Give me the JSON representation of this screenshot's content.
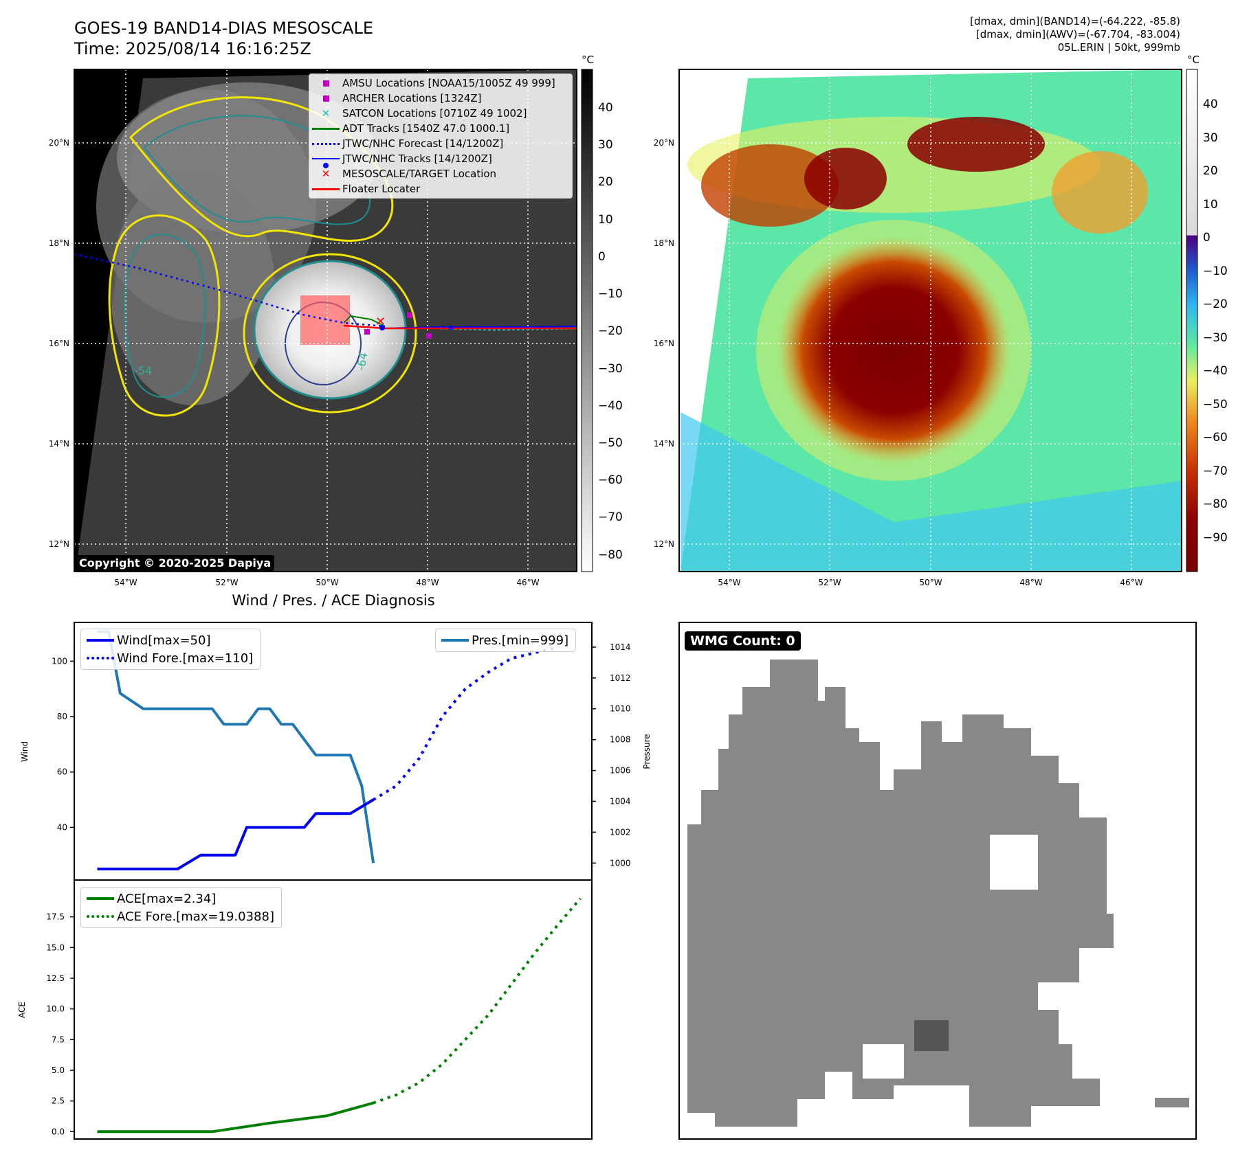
{
  "header": {
    "title_line1": "GOES-19 BAND14-DIAS MESOSCALE",
    "title_line2": "Time: 2025/08/14 16:16:25Z",
    "meta_line1": "[dmax, dmin](BAND14)=(-64.222, -85.8)",
    "meta_line2": "[dmax, dmin](AWV)=(-67.704, -83.004)",
    "meta_line3": "05L.ERIN | 50kt, 999mb"
  },
  "ir_map": {
    "lon_ticks": [
      "54°W",
      "52°W",
      "50°W",
      "48°W",
      "46°W"
    ],
    "lat_ticks": [
      "20°N",
      "18°N",
      "16°N",
      "14°N",
      "12°N"
    ],
    "contour_labels": [
      "-54",
      "-64"
    ],
    "copyright": "Copyright © 2020-2025 Dapiya",
    "legend": [
      {
        "label": "AMSU Locations [NOAA15/1005Z 49 999]",
        "color": "#c000c0",
        "kind": "square"
      },
      {
        "label": "ARCHER Locations [1324Z]",
        "color": "#c000c0",
        "kind": "square"
      },
      {
        "label": "SATCON Locations [0710Z 49 1002]",
        "color": "#20c0c0",
        "kind": "x"
      },
      {
        "label": "ADT Tracks [1540Z 47.0 1000.1]",
        "color": "#008000",
        "kind": "line"
      },
      {
        "label": "JTWC/NHC Forecast [14/1200Z]",
        "color": "#0000ff",
        "kind": "dotted"
      },
      {
        "label": "JTWC/NHC Tracks [14/1200Z]",
        "color": "#0000ff",
        "kind": "line-dot"
      },
      {
        "label": "MESOSCALE/TARGET Location",
        "color": "#ff0000",
        "kind": "x"
      },
      {
        "label": "Floater Locater",
        "color": "#ff0000",
        "kind": "line"
      }
    ],
    "colorbar": {
      "unit": "°C",
      "ticks": [
        "40",
        "30",
        "20",
        "10",
        "0",
        "−10",
        "−20",
        "−30",
        "−40",
        "−50",
        "−60",
        "−70",
        "−80"
      ]
    }
  },
  "awv_map": {
    "lon_ticks": [
      "54°W",
      "52°W",
      "50°W",
      "48°W",
      "46°W"
    ],
    "lat_ticks": [
      "20°N",
      "18°N",
      "16°N",
      "14°N",
      "12°N"
    ],
    "colorbar": {
      "unit": "°C",
      "ticks": [
        "40",
        "30",
        "20",
        "10",
        "0",
        "−10",
        "−20",
        "−30",
        "−40",
        "−50",
        "−60",
        "−70",
        "−80",
        "−90"
      ]
    }
  },
  "wmg": {
    "label": "WMG Count: 0"
  },
  "chart_data": [
    {
      "type": "line",
      "title": "Wind / Pres. / ACE Diagnosis",
      "ylabel": "Wind",
      "y2label": "Pressure",
      "ylim": [
        21,
        114
      ],
      "y2lim": [
        998.9,
        1015.6
      ],
      "yticks": [
        40,
        60,
        80,
        100
      ],
      "y2ticks": [
        1000,
        1002,
        1004,
        1006,
        1008,
        1010,
        1012,
        1014
      ],
      "xlim": [
        -2,
        43
      ],
      "series": [
        {
          "name": "Wind[max=50]",
          "axis": "left",
          "style": "solid",
          "color": "#0000ee",
          "x": [
            0,
            3,
            6,
            7,
            9,
            12,
            13,
            15,
            18,
            19,
            22,
            24
          ],
          "y": [
            25,
            25,
            25,
            25,
            30,
            30,
            40,
            40,
            40,
            45,
            45,
            50
          ]
        },
        {
          "name": "Wind Fore.[max=110]",
          "axis": "left",
          "style": "dotted",
          "color": "#0000ee",
          "x": [
            24,
            26,
            28,
            30,
            32,
            34,
            36,
            38,
            40
          ],
          "y": [
            50,
            55,
            65,
            80,
            90,
            96,
            101,
            103,
            105
          ]
        },
        {
          "name": "Pres.[min=999]",
          "axis": "right",
          "style": "solid",
          "color": "#1f77b4",
          "x": [
            0,
            1,
            2,
            4,
            8,
            10,
            11,
            13,
            14,
            15,
            16,
            17,
            18,
            19,
            20,
            22,
            23,
            24
          ],
          "y": [
            1015,
            1015,
            1011,
            1010,
            1010,
            1010,
            1009,
            1009,
            1010,
            1010,
            1009,
            1009,
            1008,
            1007,
            1007,
            1007,
            1005,
            1000
          ]
        }
      ]
    },
    {
      "type": "line",
      "ylabel": "ACE",
      "ylim": [
        -0.6,
        20.5
      ],
      "yticks": [
        0.0,
        2.5,
        5.0,
        7.5,
        10.0,
        12.5,
        15.0,
        17.5
      ],
      "ytick_labels": [
        "0.0",
        "2.5",
        "5.0",
        "7.5",
        "10.0",
        "12.5",
        "15.0",
        "17.5"
      ],
      "xlim": [
        -2,
        43
      ],
      "series": [
        {
          "name": "ACE[max=2.34]",
          "style": "solid",
          "color": "#008000",
          "x": [
            0,
            10,
            15,
            20,
            24
          ],
          "y": [
            0,
            0,
            0.7,
            1.3,
            2.34
          ]
        },
        {
          "name": "ACE Fore.[max=19.0388]",
          "style": "dotted",
          "color": "#008000",
          "x": [
            24,
            26,
            28,
            30,
            32,
            34,
            36,
            38,
            40,
            42
          ],
          "y": [
            2.34,
            3.0,
            4.0,
            5.5,
            7.5,
            9.5,
            12.0,
            14.5,
            16.8,
            19.0
          ]
        }
      ]
    }
  ]
}
